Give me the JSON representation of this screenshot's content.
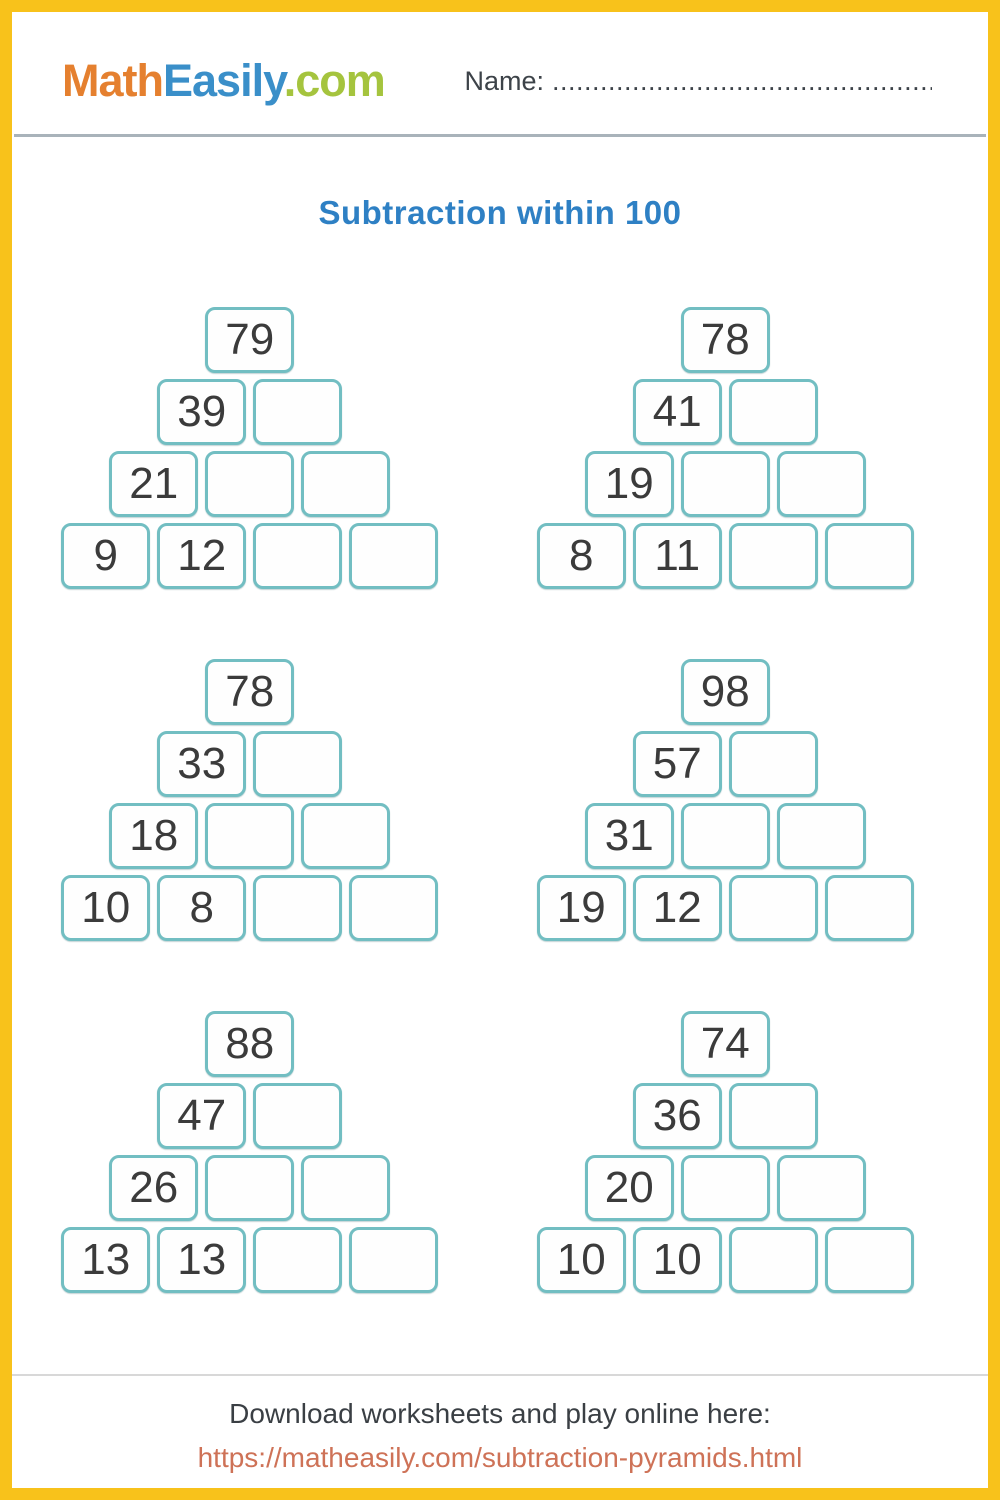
{
  "title": "Subtraction within 100",
  "colors": {
    "page_border": "#F8C21B",
    "logo_math": "#E5802F",
    "logo_easily": "#3A8FC9",
    "logo_com": "#A5C43E",
    "title_text": "#2E80C4",
    "box_border": "#72BEC2",
    "number_text": "#3B3B3B",
    "footer_link": "#CE7257"
  },
  "header": {
    "logo": {
      "part1": "Math",
      "part2": "Easily",
      "part3": ".com"
    },
    "name_label": "Name:",
    "name_line": ".........................................................."
  },
  "pyramids": [
    {
      "rows": [
        [
          "79"
        ],
        [
          "39",
          ""
        ],
        [
          "21",
          "",
          ""
        ],
        [
          "9",
          "12",
          "",
          ""
        ]
      ]
    },
    {
      "rows": [
        [
          "78"
        ],
        [
          "41",
          ""
        ],
        [
          "19",
          "",
          ""
        ],
        [
          "8",
          "11",
          "",
          ""
        ]
      ]
    },
    {
      "rows": [
        [
          "78"
        ],
        [
          "33",
          ""
        ],
        [
          "18",
          "",
          ""
        ],
        [
          "10",
          "8",
          "",
          ""
        ]
      ]
    },
    {
      "rows": [
        [
          "98"
        ],
        [
          "57",
          ""
        ],
        [
          "31",
          "",
          ""
        ],
        [
          "19",
          "12",
          "",
          ""
        ]
      ]
    },
    {
      "rows": [
        [
          "88"
        ],
        [
          "47",
          ""
        ],
        [
          "26",
          "",
          ""
        ],
        [
          "13",
          "13",
          "",
          ""
        ]
      ]
    },
    {
      "rows": [
        [
          "74"
        ],
        [
          "36",
          ""
        ],
        [
          "20",
          "",
          ""
        ],
        [
          "10",
          "10",
          "",
          ""
        ]
      ]
    }
  ],
  "footer": {
    "text": "Download worksheets and play online here:",
    "link": "https://matheasily.com/subtraction-pyramids.html"
  }
}
